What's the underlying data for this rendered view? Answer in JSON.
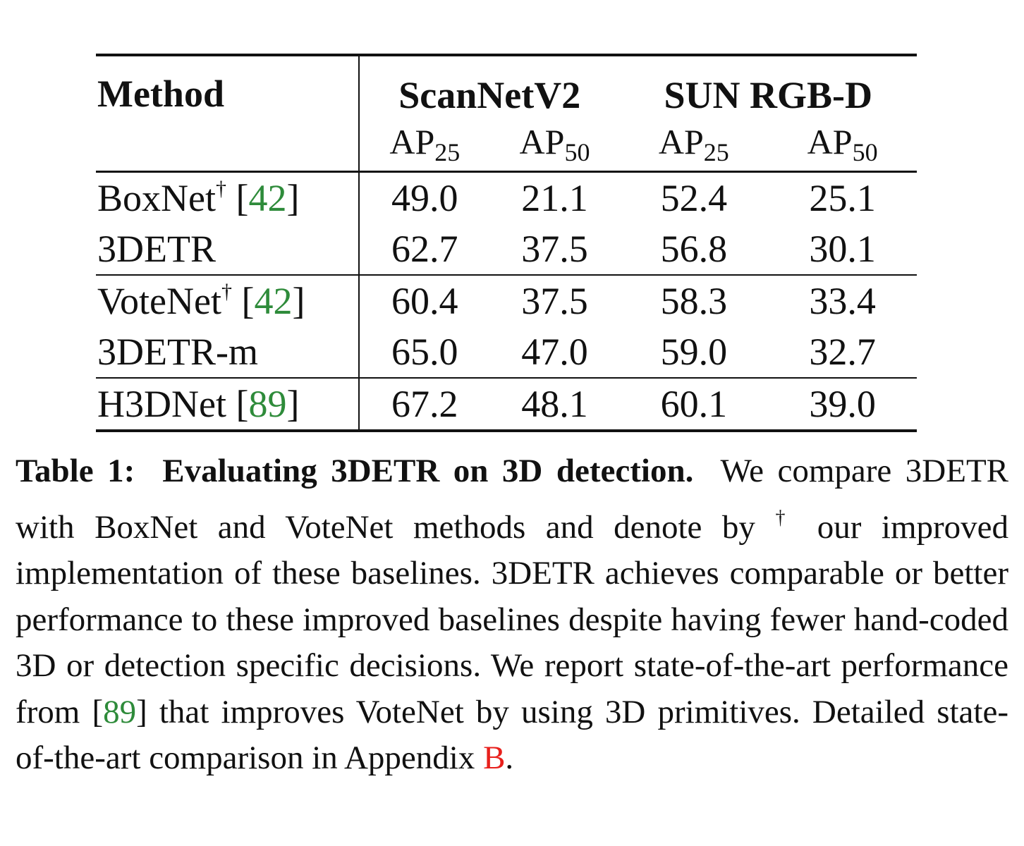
{
  "table": {
    "header": {
      "method": "Method",
      "groups": [
        "ScanNetV2",
        "SUN RGB-D"
      ],
      "metrics": [
        {
          "base": "AP",
          "sub": "25"
        },
        {
          "base": "AP",
          "sub": "50"
        },
        {
          "base": "AP",
          "sub": "25"
        },
        {
          "base": "AP",
          "sub": "50"
        }
      ]
    },
    "rows": [
      {
        "name": "BoxNet",
        "dagger": "†",
        "cite": "42",
        "values": [
          "49.0",
          "21.1",
          "52.4",
          "25.1"
        ]
      },
      {
        "name": "3DETR",
        "values": [
          "62.7",
          "37.5",
          "56.8",
          "30.1"
        ]
      },
      {
        "name": "VoteNet",
        "dagger": "†",
        "cite": "42",
        "values": [
          "60.4",
          "37.5",
          "58.3",
          "33.4"
        ]
      },
      {
        "name": "3DETR-m",
        "values": [
          "65.0",
          "47.0",
          "59.0",
          "32.7"
        ]
      },
      {
        "name": "H3DNet",
        "cite": "89",
        "values": [
          "67.2",
          "48.1",
          "60.1",
          "39.0"
        ]
      }
    ]
  },
  "caption": {
    "label": "Table 1:",
    "title": "Evaluating 3DETR on 3D detection.",
    "text_1": "We compare 3DETR with BoxNet and VoteNet methods and denote by",
    "dagger": "†",
    "text_2": "our improved implementation of these baselines. 3DETR achieves comparable or better performance to these improved baselines despite having fewer hand-coded 3D or detection specific decisions. We report state-of-the-art performance from",
    "cite": "89",
    "text_3": "that improves VoteNet by using 3D primitives. Detailed state-of-the-art comparison in Appendix",
    "appendix_ref": "B",
    "text_4": "."
  },
  "colors": {
    "citation": "#2e8b3a",
    "reference": "#e8201c"
  }
}
